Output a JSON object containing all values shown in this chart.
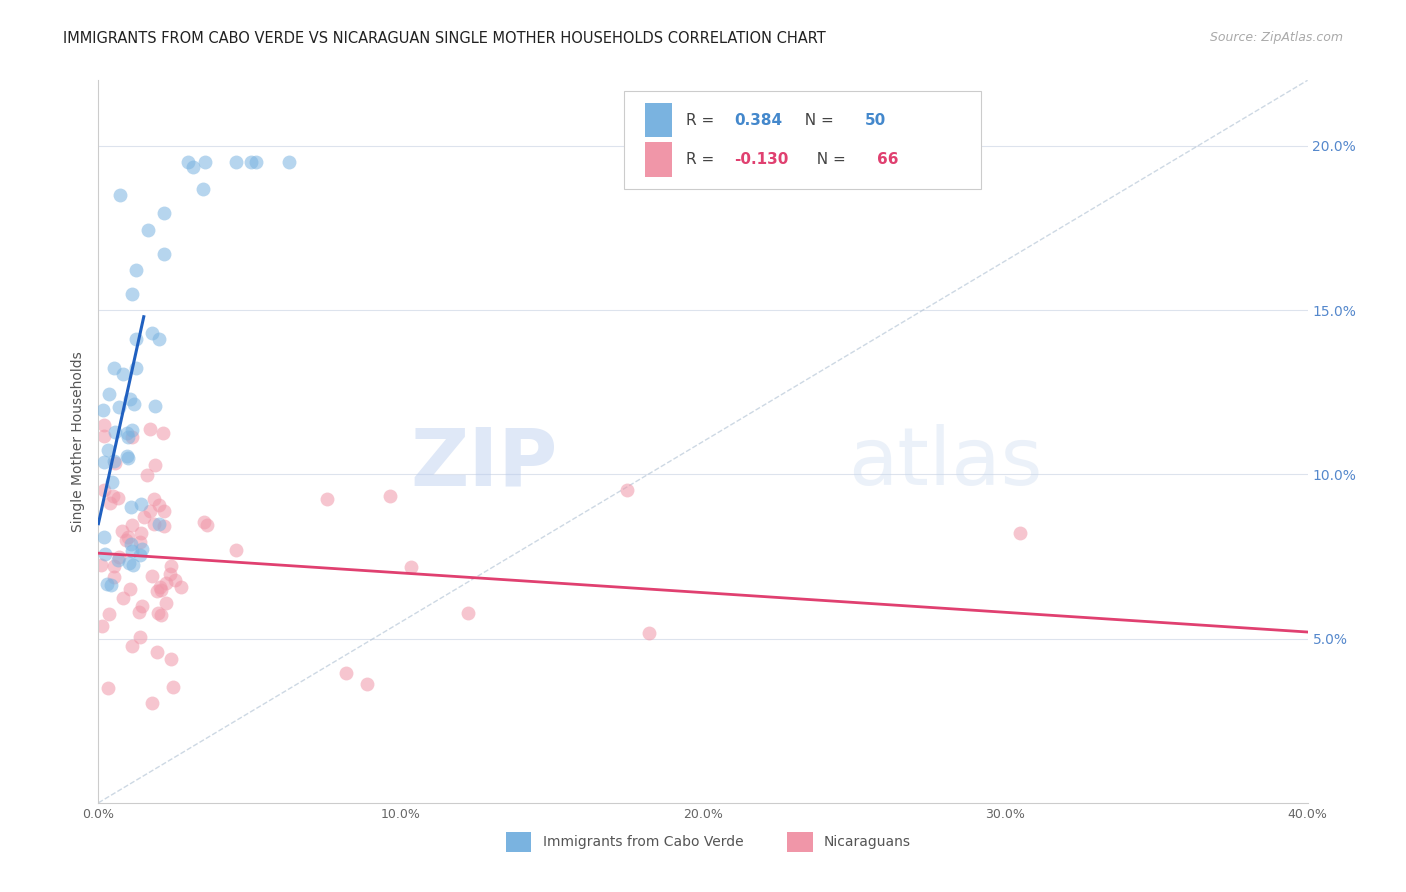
{
  "title": "IMMIGRANTS FROM CABO VERDE VS NICARAGUAN SINGLE MOTHER HOUSEHOLDS CORRELATION CHART",
  "source": "Source: ZipAtlas.com",
  "ylabel": "Single Mother Households",
  "cabo_verde_color": "#7ab3e0",
  "nicaraguan_color": "#f096a8",
  "cabo_verde_line_color": "#2060c0",
  "nicaraguan_line_color": "#e04070",
  "diagonal_color": "#b8c8d8",
  "watermark_zip": "ZIP",
  "watermark_atlas": "atlas",
  "xlim": [
    0.0,
    0.4
  ],
  "ylim": [
    0.0,
    0.22
  ],
  "background_color": "#ffffff",
  "grid_color": "#dde3ed"
}
